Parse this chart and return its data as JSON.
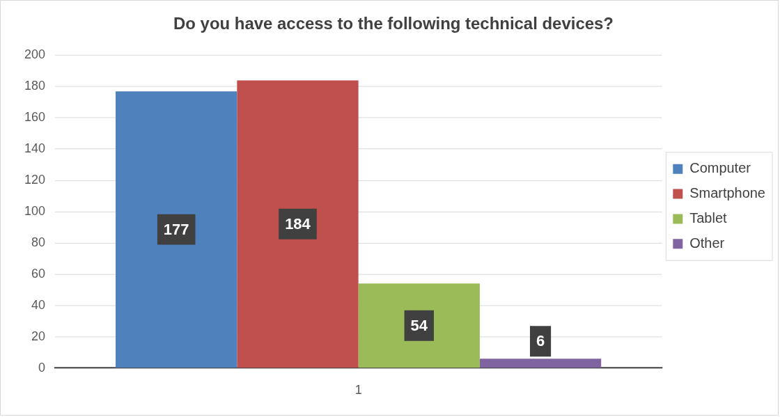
{
  "chart_data": {
    "type": "bar",
    "title": "Do you have access to the following technical devices?",
    "categories": [
      "1"
    ],
    "series": [
      {
        "name": "Computer",
        "color": "#4f81bd",
        "values": [
          177
        ]
      },
      {
        "name": "Smartphone",
        "color": "#c0504d",
        "values": [
          184
        ]
      },
      {
        "name": "Tablet",
        "color": "#9bbb59",
        "values": [
          54
        ]
      },
      {
        "name": "Other",
        "color": "#8064a2",
        "values": [
          6
        ]
      }
    ],
    "ylim": [
      0,
      200
    ],
    "yticks": [
      0,
      20,
      40,
      60,
      80,
      100,
      120,
      140,
      160,
      180,
      200
    ],
    "grid": "y",
    "legend": "right",
    "data_labels": true
  }
}
